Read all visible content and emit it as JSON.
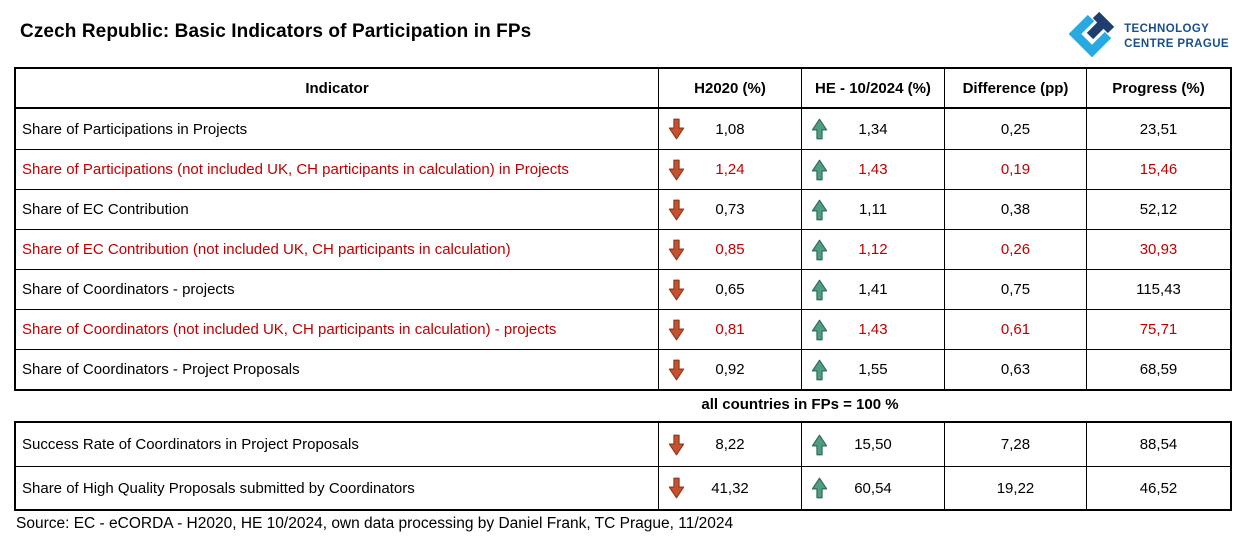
{
  "page": {
    "title": "Czech Republic: Basic Indicators of Participation in FPs",
    "divider_note": "all countries in FPs = 100 %",
    "source_note": "Source: EC - eCORDA - H2020, HE 10/2024, own data processing by Daniel  Frank, TC Prague, 11/2024"
  },
  "logo": {
    "line1": "TECHNOLOGY",
    "line2": "CENTRE PRAGUE",
    "light_blue": "#29A9E1",
    "dark_blue": "#1D3E6E",
    "text_color": "#17508C"
  },
  "colors": {
    "highlight_text": "#C00000",
    "default_text": "#000000",
    "border": "#000000",
    "arrow_down_fill": "#C8502E",
    "arrow_down_stroke": "#8E3A20",
    "arrow_up_fill": "#4F9D85",
    "arrow_up_stroke": "#2F6E5A"
  },
  "table": {
    "headers": [
      "Indicator",
      "H2020 (%)",
      "HE - 10/2024 (%)",
      "Difference (pp)",
      "Progress (%)"
    ],
    "rows": [
      {
        "indicator": "Share of Participations in Projects",
        "h2020": "1,08",
        "he": "1,34",
        "difference": "0,25",
        "progress": "23,51",
        "highlight": false
      },
      {
        "indicator": "Share of Participations (not included UK, CH participants in calculation) in Projects",
        "h2020": "1,24",
        "he": "1,43",
        "difference": "0,19",
        "progress": "15,46",
        "highlight": true
      },
      {
        "indicator": "Share of EC Contribution",
        "h2020": "0,73",
        "he": "1,11",
        "difference": "0,38",
        "progress": "52,12",
        "highlight": false
      },
      {
        "indicator": "Share of EC Contribution (not included UK, CH participants in calculation)",
        "h2020": "0,85",
        "he": "1,12",
        "difference": "0,26",
        "progress": "30,93",
        "highlight": true
      },
      {
        "indicator": "Share of Coordinators - projects",
        "h2020": "0,65",
        "he": "1,41",
        "difference": "0,75",
        "progress": "115,43",
        "highlight": false
      },
      {
        "indicator": "Share of Coordinators (not included UK, CH participants in calculation) - projects",
        "h2020": "0,81",
        "he": "1,43",
        "difference": "0,61",
        "progress": "75,71",
        "highlight": true
      },
      {
        "indicator": "Share of Coordinators  -  Project Proposals",
        "h2020": "0,92",
        "he": "1,55",
        "difference": "0,63",
        "progress": "68,59",
        "highlight": false
      }
    ]
  },
  "table2": {
    "rows": [
      {
        "indicator": "Success Rate of Coordinators in Project Proposals",
        "h2020": "8,22",
        "he": "15,50",
        "difference": "7,28",
        "progress": "88,54",
        "highlight": false
      },
      {
        "indicator": "Share of High Quality Proposals submitted by Coordinators",
        "h2020": "41,32",
        "he": "60,54",
        "difference": "19,22",
        "progress": "46,52",
        "highlight": false
      }
    ]
  }
}
